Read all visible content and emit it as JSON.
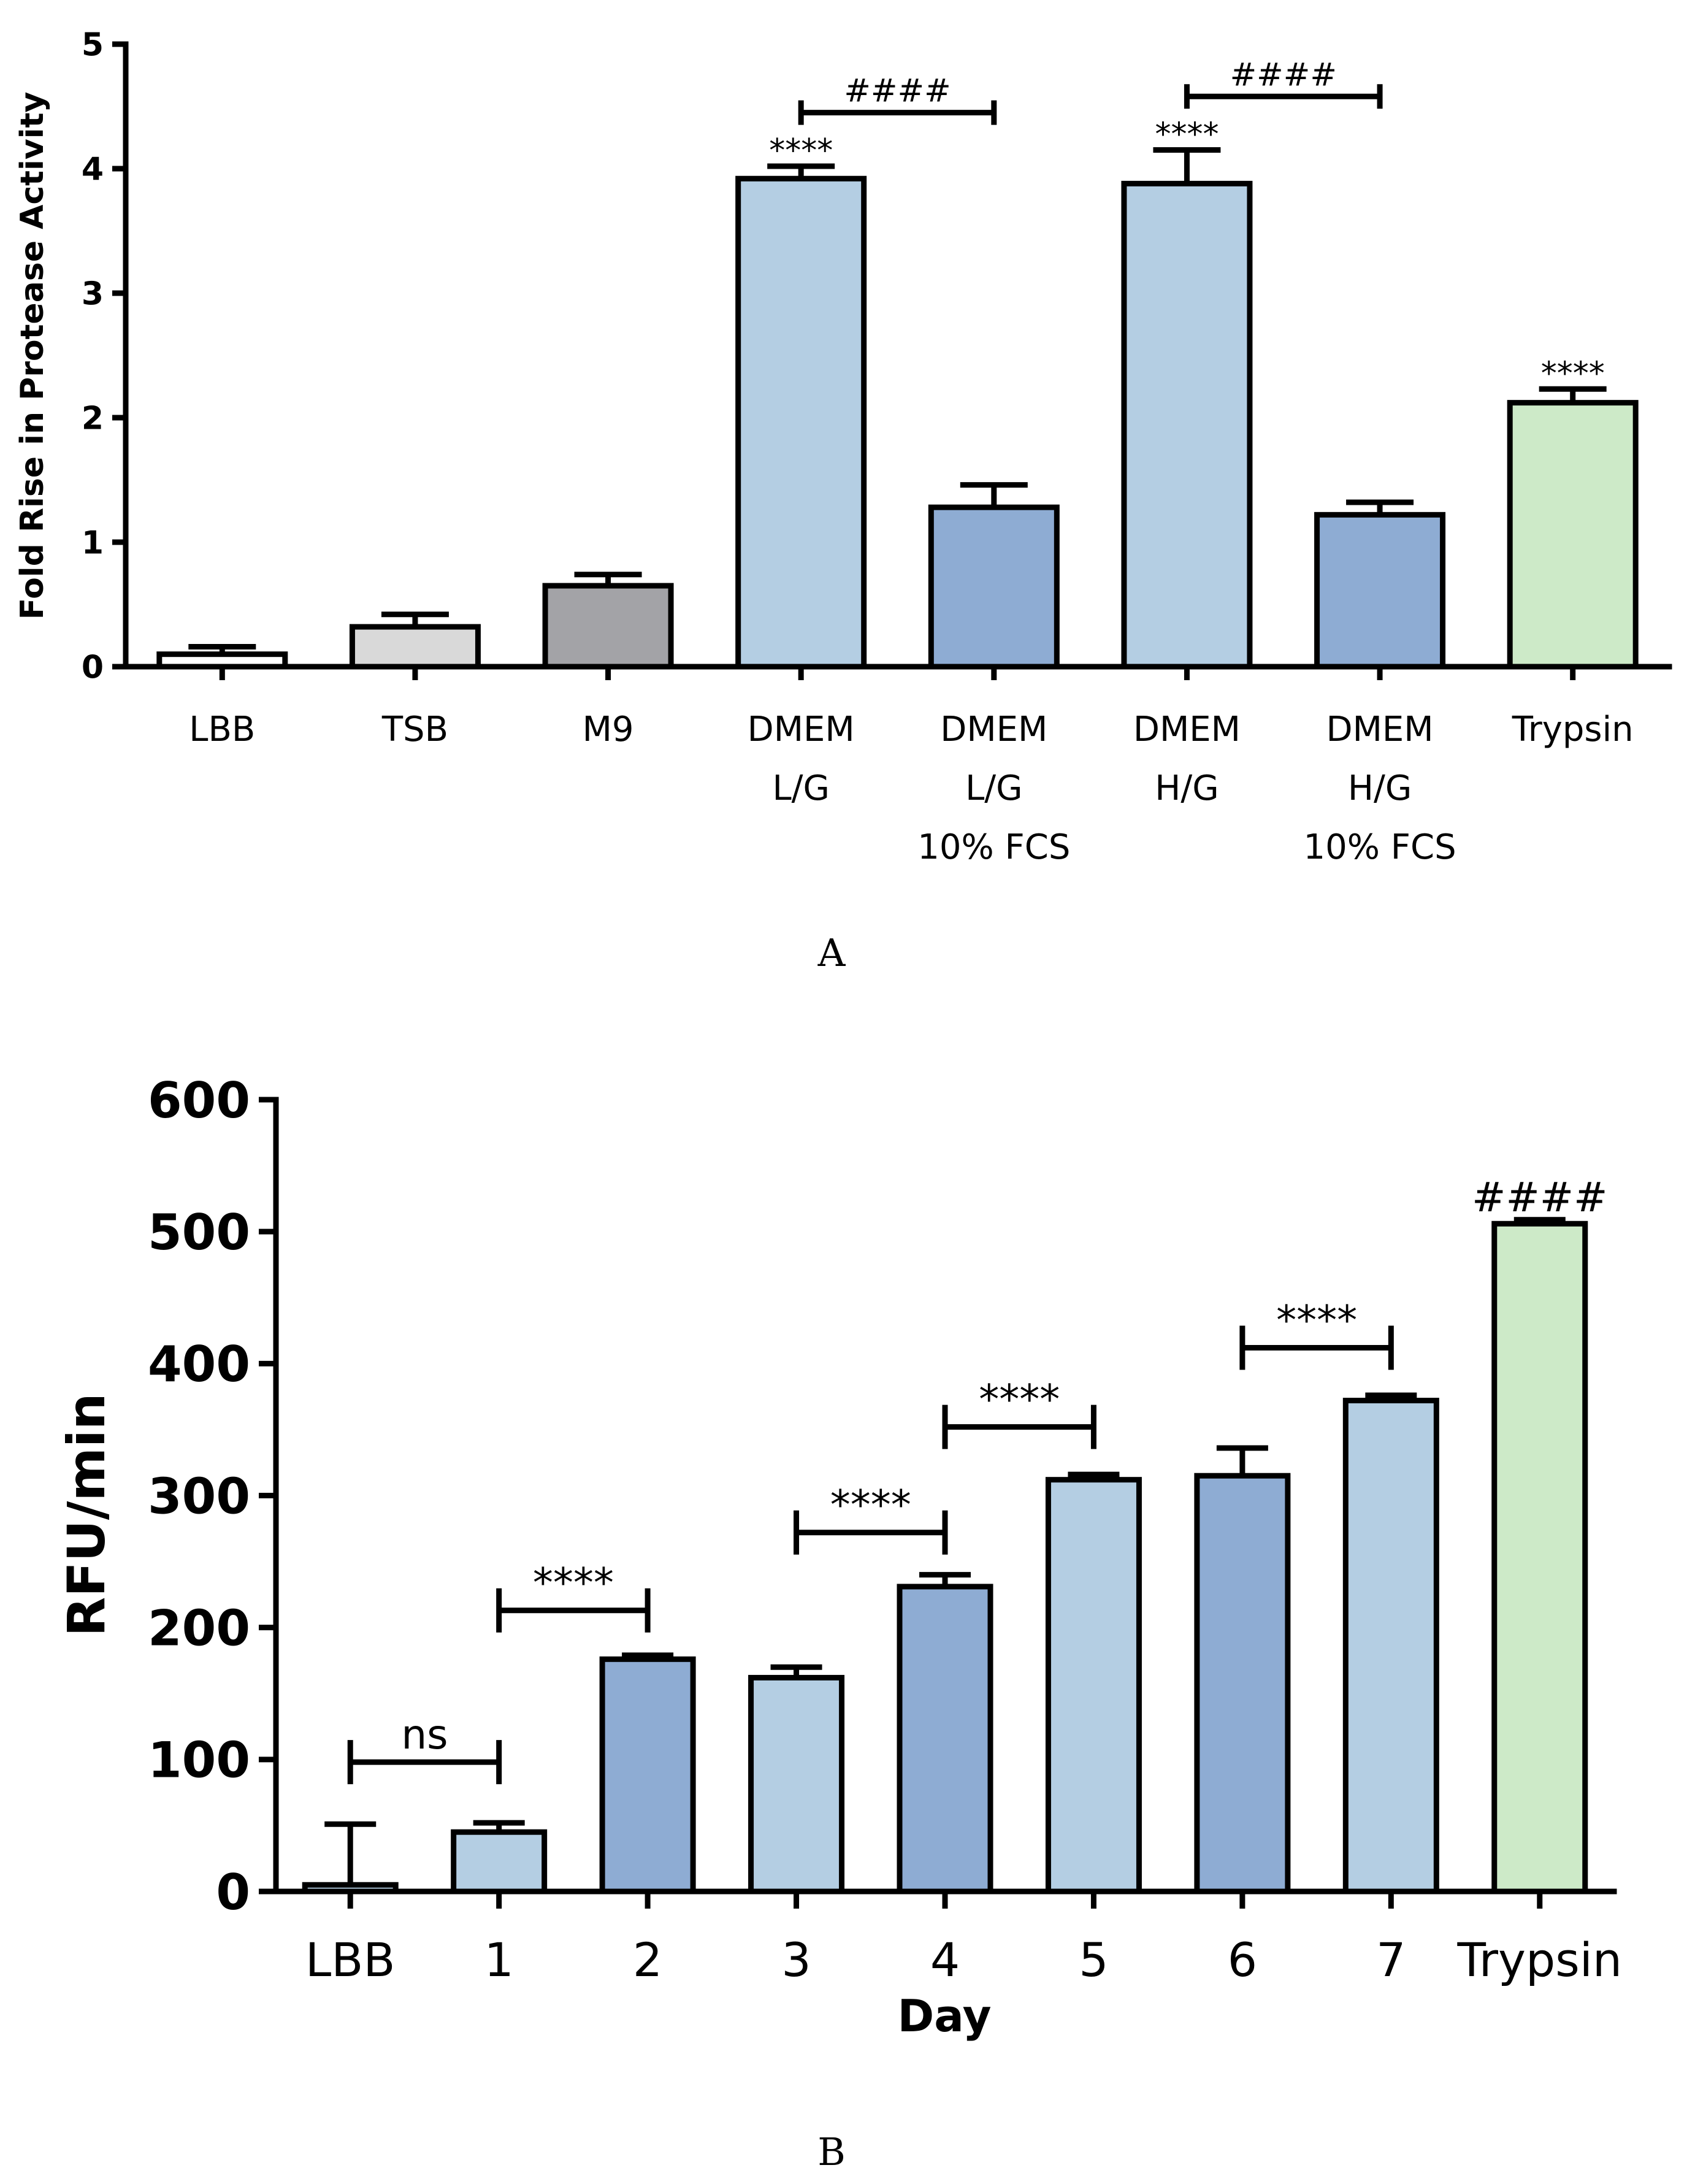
{
  "chart_data": [
    {
      "type": "bar",
      "panel_label": "A",
      "title": "",
      "xlabel": "",
      "ylabel": "Fold Rise in  Protease Activity",
      "ylim": [
        0,
        5
      ],
      "yticks": [
        "0",
        "1",
        "2",
        "3",
        "4",
        "5"
      ],
      "categories": [
        [
          "LBB"
        ],
        [
          "TSB"
        ],
        [
          "M9"
        ],
        [
          "DMEM",
          "L/G"
        ],
        [
          "DMEM",
          "L/G",
          "10% FCS"
        ],
        [
          "DMEM",
          "H/G"
        ],
        [
          "DMEM",
          "H/G",
          "10% FCS"
        ],
        [
          "Trypsin"
        ]
      ],
      "values": [
        0.1,
        0.32,
        0.65,
        3.92,
        1.28,
        3.88,
        1.22,
        2.12
      ],
      "errors": [
        0.06,
        0.1,
        0.09,
        0.1,
        0.18,
        0.27,
        0.1,
        0.11
      ],
      "colors": [
        "#ffffff",
        "#d9d9d9",
        "#a3a3a7",
        "#b4cee3",
        "#8eacd3",
        "#b4cee3",
        "#8eacd3",
        "#cdeac8"
      ],
      "annotations": [
        {
          "text": "****",
          "bar": 3
        },
        {
          "text": "****",
          "bar": 5
        },
        {
          "text": "****",
          "bar": 7
        }
      ],
      "brackets": [
        {
          "text": "####",
          "from": 3,
          "to": 4,
          "y": 4.45
        },
        {
          "text": "####",
          "from": 5,
          "to": 6,
          "y": 4.58
        }
      ]
    },
    {
      "type": "bar",
      "panel_label": "B",
      "title": "",
      "xlabel": "Day",
      "ylabel": "RFU/min",
      "ylim": [
        0,
        600
      ],
      "yticks": [
        "0",
        "100",
        "200",
        "300",
        "400",
        "500",
        "600"
      ],
      "categories": [
        "LBB",
        "1",
        "2",
        "3",
        "4",
        "5",
        "6",
        "7",
        "Trypsin"
      ],
      "values": [
        5,
        45,
        176,
        162,
        231,
        312,
        315,
        372,
        506
      ],
      "errors": [
        46,
        7,
        3,
        8,
        9,
        4,
        21,
        4,
        3
      ],
      "colors": [
        "#b4cee3",
        "#b4cee3",
        "#8eacd3",
        "#b4cee3",
        "#8eacd3",
        "#b4cee3",
        "#8eacd3",
        "#b4cee3",
        "#cdeac8"
      ],
      "annotations": [
        {
          "text": "####",
          "bar": 8
        }
      ],
      "brackets": [
        {
          "text": "ns",
          "from": 0,
          "to": 1,
          "y": 98
        },
        {
          "text": "****",
          "from": 1,
          "to": 2,
          "y": 213
        },
        {
          "text": "****",
          "from": 3,
          "to": 4,
          "y": 272
        },
        {
          "text": "****",
          "from": 4,
          "to": 5,
          "y": 352
        },
        {
          "text": "****",
          "from": 6,
          "to": 7,
          "y": 412
        }
      ]
    }
  ]
}
